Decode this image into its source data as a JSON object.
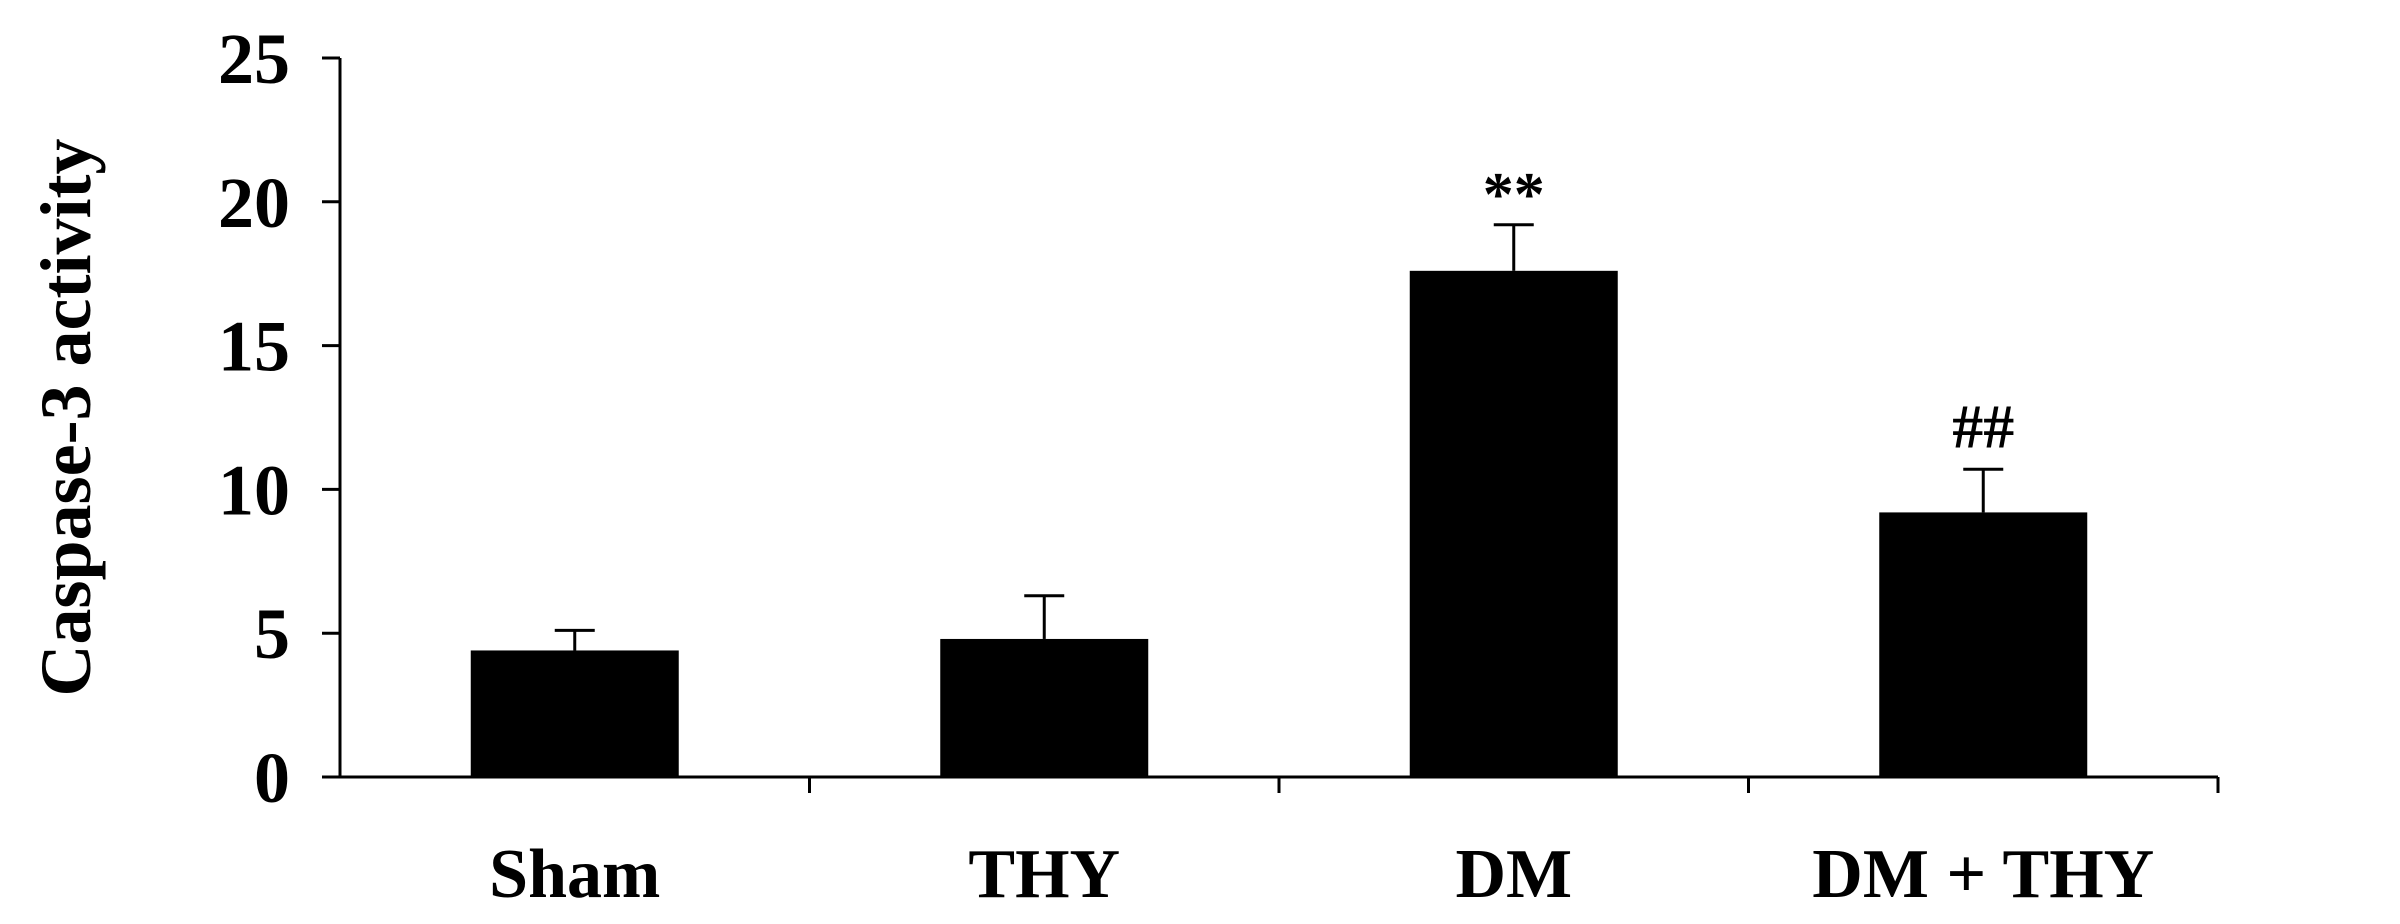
{
  "chart_data": {
    "type": "bar",
    "title": "",
    "xlabel": "",
    "ylabel": "Caspase-3 activity",
    "ylim": [
      0,
      25
    ],
    "yticks": [
      "0",
      "5",
      "10",
      "15",
      "20",
      "25"
    ],
    "categories": [
      "Sham",
      "THY",
      "DM",
      "DM + THY"
    ],
    "values": [
      4.4,
      4.8,
      17.6,
      9.2
    ],
    "errors": [
      0.7,
      1.5,
      1.6,
      1.5
    ],
    "annotations": [
      "",
      "",
      "**",
      "##"
    ],
    "bar_color": "#000000",
    "grid": false,
    "legend": "none"
  }
}
